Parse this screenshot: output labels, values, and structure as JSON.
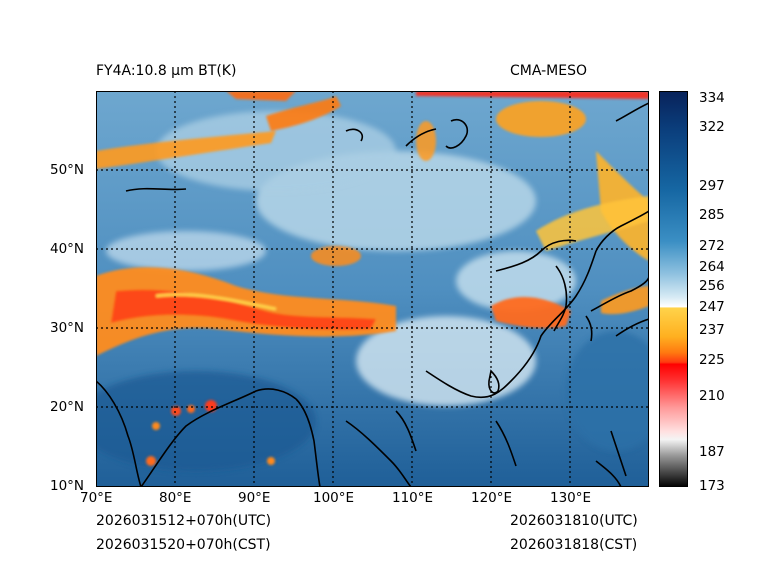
{
  "header": {
    "title_left": "FY4A:10.8 µm BT(K)",
    "title_right": "CMA-MESO"
  },
  "map": {
    "lon_ticks": [
      "70°E",
      "80°E",
      "90°E",
      "100°E",
      "110°E",
      "120°E",
      "130°E"
    ],
    "lat_ticks": [
      "10°N",
      "20°N",
      "30°N",
      "40°N",
      "50°N"
    ],
    "lon_range": [
      70,
      140
    ],
    "lat_range": [
      10,
      60
    ]
  },
  "colorbar": {
    "labels": [
      "334",
      "322",
      "297",
      "285",
      "272",
      "264",
      "256",
      "247",
      "237",
      "225",
      "210",
      "187",
      "173"
    ],
    "colors": {
      "cold": "#000000",
      "white": "#ffffff",
      "red": "#ff0000",
      "orange": "#ff8c00",
      "yellow": "#ffd000",
      "light_blue": "#9ecae1",
      "mid_blue": "#1f78b4",
      "dark_blue": "#08306b"
    }
  },
  "footer": {
    "left_utc": "2026031512+070h(UTC)",
    "left_cst": "2026031520+070h(CST)",
    "right_utc": "2026031810(UTC)",
    "right_cst": "2026031818(CST)"
  }
}
